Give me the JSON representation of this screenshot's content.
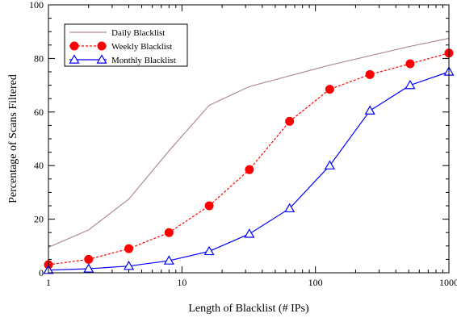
{
  "chart_data": {
    "type": "line",
    "title": "",
    "xlabel": "Length of Blacklist (# IPs)",
    "ylabel": "Percentage of Scans Filtered",
    "xscale": "log",
    "xlim": [
      1,
      1000
    ],
    "ylim": [
      0,
      100
    ],
    "x_ticks": [
      1,
      10,
      100,
      1000
    ],
    "x_tick_labels": [
      "1",
      "10",
      "100",
      "1000"
    ],
    "y_ticks": [
      0,
      20,
      40,
      60,
      80,
      100
    ],
    "y_tick_labels": [
      "0",
      "20",
      "40",
      "60",
      "80",
      "100"
    ],
    "grid": false,
    "legend_position": "top-left",
    "series": [
      {
        "name": "Daily Blacklist",
        "color": "#b08c8c",
        "line": "solid",
        "marker": "none",
        "x": [
          1,
          2,
          4,
          8,
          16,
          32,
          64,
          128,
          256,
          512,
          1000
        ],
        "y": [
          9.5,
          16,
          27.5,
          45.5,
          62.5,
          69.5,
          73.5,
          77.5,
          81,
          84.5,
          87.5
        ]
      },
      {
        "name": "Weekly Blacklist",
        "color": "#ff0000",
        "line": "dashed",
        "marker": "filled-circle",
        "x": [
          1,
          2,
          4,
          8,
          16,
          32,
          64,
          128,
          256,
          512,
          1000
        ],
        "y": [
          3,
          5,
          9,
          15,
          25,
          38.5,
          56.5,
          68.5,
          74,
          78,
          82
        ]
      },
      {
        "name": "Monthly Blacklist",
        "color": "#0000ff",
        "line": "solid",
        "marker": "open-triangle",
        "x": [
          1,
          2,
          4,
          8,
          16,
          32,
          64,
          128,
          256,
          512,
          1000
        ],
        "y": [
          1,
          1.5,
          2.5,
          4.5,
          8,
          14.5,
          24,
          40,
          60.5,
          70,
          75
        ]
      }
    ]
  }
}
